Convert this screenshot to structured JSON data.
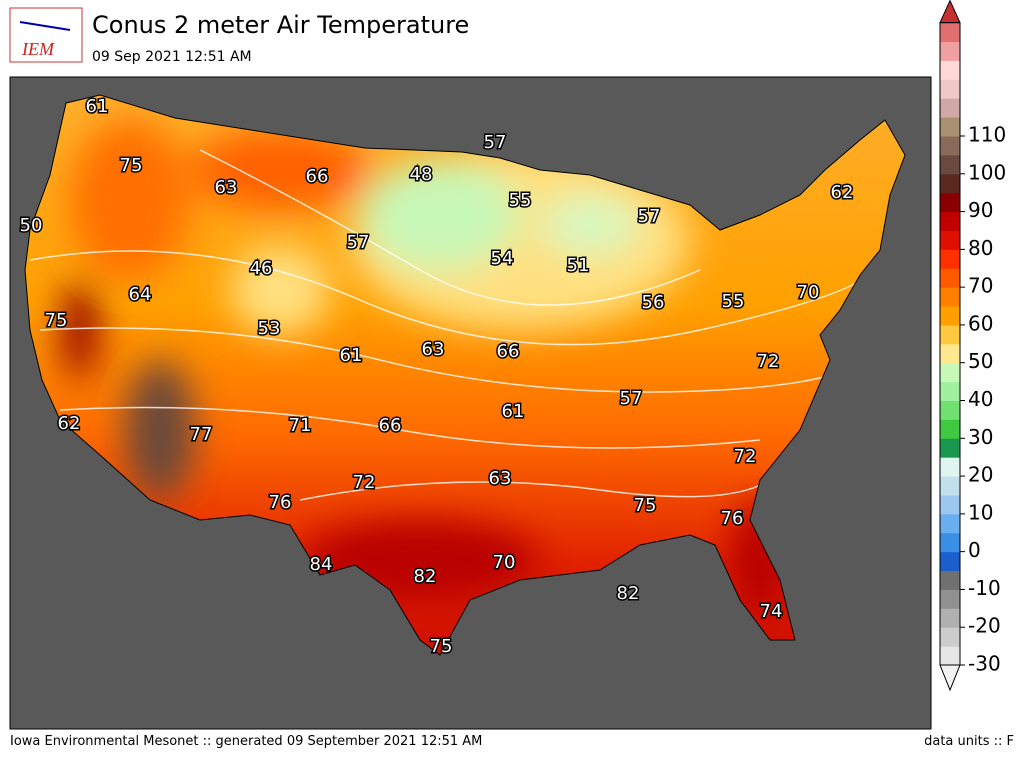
{
  "header": {
    "logo": "IEM",
    "title": "Conus 2 meter Air Temperature",
    "subtitle": "09 Sep 2021 12:51 AM"
  },
  "map": {
    "labels": [
      "61",
      "75",
      "63",
      "66",
      "57",
      "48",
      "55",
      "57",
      "62",
      "50",
      "57",
      "46",
      "54",
      "51",
      "64",
      "75",
      "53",
      "56",
      "55",
      "70",
      "61",
      "63",
      "66",
      "72",
      "57",
      "61",
      "62",
      "77",
      "71",
      "66",
      "72",
      "63",
      "72",
      "76",
      "75",
      "76",
      "70",
      "84",
      "82",
      "82",
      "74",
      "75"
    ]
  },
  "colorbar": {
    "ticks": [
      -30,
      -20,
      -10,
      0,
      10,
      20,
      30,
      40,
      50,
      60,
      70,
      80,
      90,
      100,
      110
    ]
  },
  "footer": {
    "left": "Iowa Environmental Mesonet :: generated 09 September 2021 12:51 AM",
    "right": "data units :: F"
  }
}
